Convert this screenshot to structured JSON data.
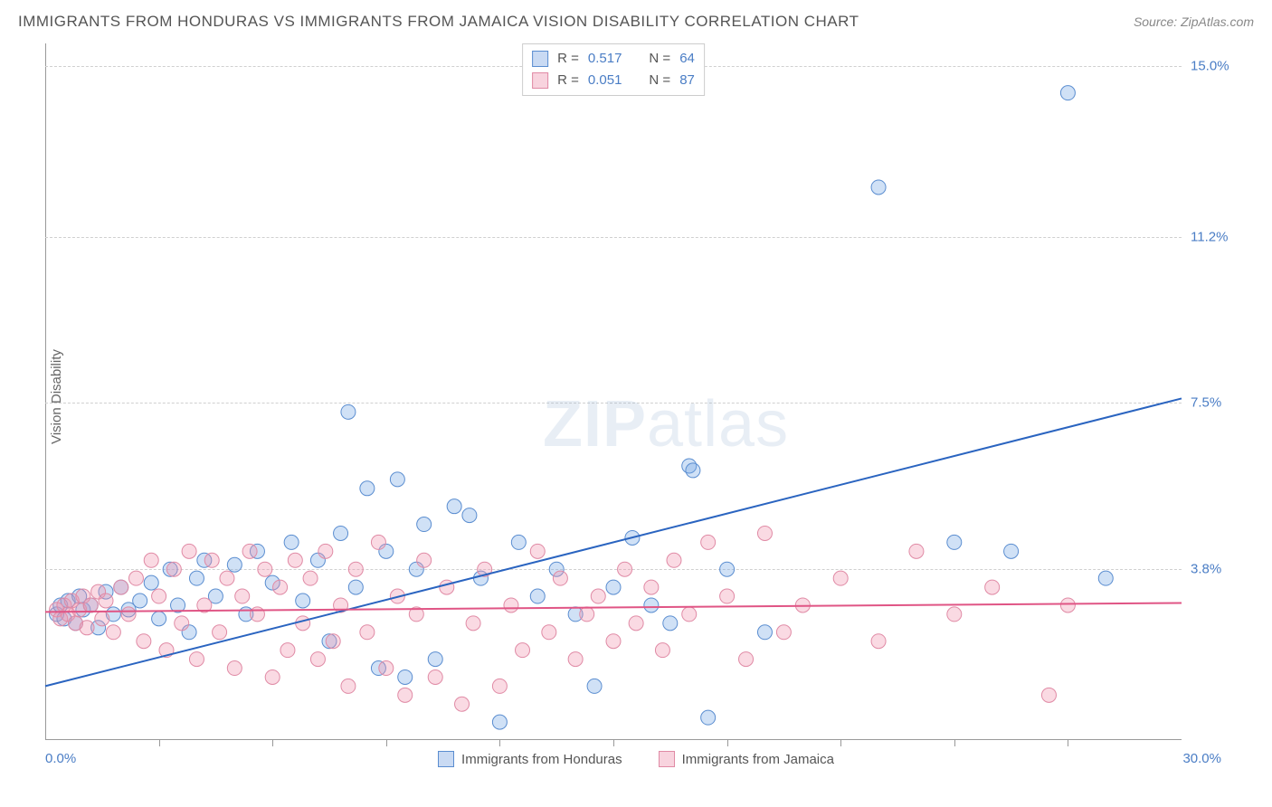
{
  "title": "IMMIGRANTS FROM HONDURAS VS IMMIGRANTS FROM JAMAICA VISION DISABILITY CORRELATION CHART",
  "source": "Source: ZipAtlas.com",
  "y_axis_label": "Vision Disability",
  "watermark_a": "ZIP",
  "watermark_b": "atlas",
  "chart": {
    "type": "scatter",
    "xlim": [
      0.0,
      30.0
    ],
    "ylim": [
      0.0,
      15.5
    ],
    "x_min_label": "0.0%",
    "x_max_label": "30.0%",
    "x_ticks": [
      3,
      6,
      9,
      12,
      15,
      18,
      21,
      24,
      27
    ],
    "y_gridlines": [
      {
        "value": 3.8,
        "label": "3.8%"
      },
      {
        "value": 7.5,
        "label": "7.5%"
      },
      {
        "value": 11.2,
        "label": "11.2%"
      },
      {
        "value": 15.0,
        "label": "15.0%"
      }
    ],
    "background_color": "#ffffff",
    "grid_color": "#d0d0d0",
    "axis_color": "#999999",
    "series": [
      {
        "name": "Immigrants from Honduras",
        "legend_label": "Immigrants from Honduras",
        "color_fill": "rgba(120,170,230,0.35)",
        "color_stroke": "#5a8dd0",
        "marker_radius": 8,
        "trend_color": "#2a64c0",
        "trend_width": 2,
        "R_label": "R =",
        "R": "0.517",
        "N_label": "N =",
        "N": "64",
        "trend": {
          "x1": 0.0,
          "y1": 1.2,
          "x2": 30.0,
          "y2": 7.6
        },
        "points": [
          [
            0.3,
            2.8
          ],
          [
            0.4,
            3.0
          ],
          [
            0.5,
            2.7
          ],
          [
            0.6,
            3.1
          ],
          [
            0.8,
            2.6
          ],
          [
            0.9,
            3.2
          ],
          [
            1.0,
            2.9
          ],
          [
            1.2,
            3.0
          ],
          [
            1.4,
            2.5
          ],
          [
            1.6,
            3.3
          ],
          [
            1.8,
            2.8
          ],
          [
            2.0,
            3.4
          ],
          [
            2.2,
            2.9
          ],
          [
            2.5,
            3.1
          ],
          [
            2.8,
            3.5
          ],
          [
            3.0,
            2.7
          ],
          [
            3.3,
            3.8
          ],
          [
            3.5,
            3.0
          ],
          [
            3.8,
            2.4
          ],
          [
            4.0,
            3.6
          ],
          [
            4.2,
            4.0
          ],
          [
            4.5,
            3.2
          ],
          [
            5.0,
            3.9
          ],
          [
            5.3,
            2.8
          ],
          [
            5.6,
            4.2
          ],
          [
            6.0,
            3.5
          ],
          [
            6.5,
            4.4
          ],
          [
            6.8,
            3.1
          ],
          [
            7.2,
            4.0
          ],
          [
            7.5,
            2.2
          ],
          [
            7.8,
            4.6
          ],
          [
            8.0,
            7.3
          ],
          [
            8.2,
            3.4
          ],
          [
            8.5,
            5.6
          ],
          [
            8.8,
            1.6
          ],
          [
            9.0,
            4.2
          ],
          [
            9.3,
            5.8
          ],
          [
            9.5,
            1.4
          ],
          [
            9.8,
            3.8
          ],
          [
            10.0,
            4.8
          ],
          [
            10.3,
            1.8
          ],
          [
            10.8,
            5.2
          ],
          [
            11.2,
            5.0
          ],
          [
            11.5,
            3.6
          ],
          [
            12.0,
            0.4
          ],
          [
            12.5,
            4.4
          ],
          [
            13.0,
            3.2
          ],
          [
            13.5,
            3.8
          ],
          [
            14.0,
            2.8
          ],
          [
            14.5,
            1.2
          ],
          [
            15.0,
            3.4
          ],
          [
            15.5,
            4.5
          ],
          [
            16.0,
            3.0
          ],
          [
            16.5,
            2.6
          ],
          [
            17.0,
            6.1
          ],
          [
            17.1,
            6.0
          ],
          [
            17.5,
            0.5
          ],
          [
            18.0,
            3.8
          ],
          [
            19.0,
            2.4
          ],
          [
            22.0,
            12.3
          ],
          [
            24.0,
            4.4
          ],
          [
            25.5,
            4.2
          ],
          [
            27.0,
            14.4
          ],
          [
            28.0,
            3.6
          ]
        ]
      },
      {
        "name": "Immigrants from Jamaica",
        "legend_label": "Immigrants from Jamaica",
        "color_fill": "rgba(240,150,175,0.35)",
        "color_stroke": "#e08aa5",
        "marker_radius": 8,
        "trend_color": "#e05585",
        "trend_width": 2,
        "R_label": "R =",
        "R": "0.051",
        "N_label": "N =",
        "N": "87",
        "trend": {
          "x1": 0.0,
          "y1": 2.85,
          "x2": 30.0,
          "y2": 3.05
        },
        "points": [
          [
            0.3,
            2.9
          ],
          [
            0.4,
            2.7
          ],
          [
            0.5,
            3.0
          ],
          [
            0.6,
            2.8
          ],
          [
            0.7,
            3.1
          ],
          [
            0.8,
            2.6
          ],
          [
            0.9,
            2.9
          ],
          [
            1.0,
            3.2
          ],
          [
            1.1,
            2.5
          ],
          [
            1.2,
            3.0
          ],
          [
            1.4,
            3.3
          ],
          [
            1.5,
            2.7
          ],
          [
            1.6,
            3.1
          ],
          [
            1.8,
            2.4
          ],
          [
            2.0,
            3.4
          ],
          [
            2.2,
            2.8
          ],
          [
            2.4,
            3.6
          ],
          [
            2.6,
            2.2
          ],
          [
            2.8,
            4.0
          ],
          [
            3.0,
            3.2
          ],
          [
            3.2,
            2.0
          ],
          [
            3.4,
            3.8
          ],
          [
            3.6,
            2.6
          ],
          [
            3.8,
            4.2
          ],
          [
            4.0,
            1.8
          ],
          [
            4.2,
            3.0
          ],
          [
            4.4,
            4.0
          ],
          [
            4.6,
            2.4
          ],
          [
            4.8,
            3.6
          ],
          [
            5.0,
            1.6
          ],
          [
            5.2,
            3.2
          ],
          [
            5.4,
            4.2
          ],
          [
            5.6,
            2.8
          ],
          [
            5.8,
            3.8
          ],
          [
            6.0,
            1.4
          ],
          [
            6.2,
            3.4
          ],
          [
            6.4,
            2.0
          ],
          [
            6.6,
            4.0
          ],
          [
            6.8,
            2.6
          ],
          [
            7.0,
            3.6
          ],
          [
            7.2,
            1.8
          ],
          [
            7.4,
            4.2
          ],
          [
            7.6,
            2.2
          ],
          [
            7.8,
            3.0
          ],
          [
            8.0,
            1.2
          ],
          [
            8.2,
            3.8
          ],
          [
            8.5,
            2.4
          ],
          [
            8.8,
            4.4
          ],
          [
            9.0,
            1.6
          ],
          [
            9.3,
            3.2
          ],
          [
            9.5,
            1.0
          ],
          [
            9.8,
            2.8
          ],
          [
            10.0,
            4.0
          ],
          [
            10.3,
            1.4
          ],
          [
            10.6,
            3.4
          ],
          [
            11.0,
            0.8
          ],
          [
            11.3,
            2.6
          ],
          [
            11.6,
            3.8
          ],
          [
            12.0,
            1.2
          ],
          [
            12.3,
            3.0
          ],
          [
            12.6,
            2.0
          ],
          [
            13.0,
            4.2
          ],
          [
            13.3,
            2.4
          ],
          [
            13.6,
            3.6
          ],
          [
            14.0,
            1.8
          ],
          [
            14.3,
            2.8
          ],
          [
            14.6,
            3.2
          ],
          [
            15.0,
            2.2
          ],
          [
            15.3,
            3.8
          ],
          [
            15.6,
            2.6
          ],
          [
            16.0,
            3.4
          ],
          [
            16.3,
            2.0
          ],
          [
            16.6,
            4.0
          ],
          [
            17.0,
            2.8
          ],
          [
            17.5,
            4.4
          ],
          [
            18.0,
            3.2
          ],
          [
            18.5,
            1.8
          ],
          [
            19.0,
            4.6
          ],
          [
            19.5,
            2.4
          ],
          [
            20.0,
            3.0
          ],
          [
            21.0,
            3.6
          ],
          [
            22.0,
            2.2
          ],
          [
            23.0,
            4.2
          ],
          [
            24.0,
            2.8
          ],
          [
            25.0,
            3.4
          ],
          [
            26.5,
            1.0
          ],
          [
            27.0,
            3.0
          ]
        ]
      }
    ]
  }
}
